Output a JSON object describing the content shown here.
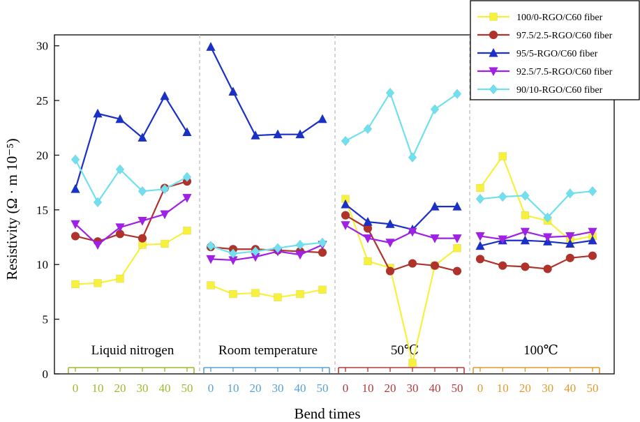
{
  "chart_data": {
    "type": "line",
    "xlabel": "Bend times",
    "ylabel": "Resistivity (Ω · m 10⁻⁵)",
    "ylim": [
      0,
      31
    ],
    "yticks": [
      "0",
      "5",
      "10",
      "15",
      "20",
      "25",
      "30"
    ],
    "x": [
      0,
      10,
      20,
      30,
      40,
      50
    ],
    "xtick_labels": [
      "0",
      "10",
      "20",
      "30",
      "40",
      "50"
    ],
    "grid": false,
    "legend_position": "top-right",
    "panels": [
      {
        "label": "Liquid nitrogen",
        "axis_color": "#9bbb2e"
      },
      {
        "label": "Room temperature",
        "axis_color": "#5aa0d8"
      },
      {
        "label": "50℃",
        "axis_color": "#b33a3a"
      },
      {
        "label": "100℃",
        "axis_color": "#e39a2a"
      }
    ],
    "series": [
      {
        "name": "100/0-RGO/C60  fiber",
        "color": "#f7f13c",
        "marker": "square",
        "values": [
          [
            8.2,
            8.3,
            8.7,
            11.8,
            11.9,
            13.1
          ],
          [
            8.1,
            7.3,
            7.4,
            7.0,
            7.3,
            7.7
          ],
          [
            16.0,
            10.3,
            9.7,
            1.0,
            9.9,
            11.5
          ],
          [
            17.0,
            19.9,
            14.5,
            14.0,
            12.2,
            12.6
          ]
        ]
      },
      {
        "name": "97.5/2.5-RGO/C60  fiber",
        "color": "#b0322a",
        "marker": "circle",
        "values": [
          [
            12.6,
            12.1,
            12.8,
            12.4,
            17.0,
            17.6
          ],
          [
            11.6,
            11.4,
            11.4,
            11.3,
            11.2,
            11.1
          ],
          [
            14.5,
            13.3,
            9.4,
            10.1,
            9.9,
            9.4
          ],
          [
            10.5,
            9.9,
            9.8,
            9.6,
            10.6,
            10.8
          ]
        ]
      },
      {
        "name": "95/5-RGO/C60  fiber",
        "color": "#1a30c6",
        "marker": "triangle-up",
        "values": [
          [
            16.9,
            23.8,
            23.3,
            21.6,
            25.4,
            22.1
          ],
          [
            29.9,
            25.8,
            21.8,
            21.9,
            21.9,
            23.3
          ],
          [
            15.5,
            13.9,
            13.7,
            13.2,
            15.3,
            15.3
          ],
          [
            11.7,
            12.2,
            12.2,
            12.1,
            11.9,
            12.2
          ]
        ]
      },
      {
        "name": "92.5/7.5-RGO/C60  fiber",
        "color": "#a020e8",
        "marker": "triangle-down",
        "values": [
          [
            13.7,
            11.8,
            13.4,
            14.0,
            14.6,
            16.1
          ],
          [
            10.5,
            10.4,
            10.7,
            11.2,
            10.9,
            11.8
          ],
          [
            13.6,
            12.4,
            12.0,
            13.0,
            12.4,
            12.4
          ],
          [
            12.6,
            12.3,
            13.0,
            12.5,
            12.6,
            13.0
          ]
        ]
      },
      {
        "name": "90/10-RGO/C60  fiber",
        "color": "#70e0ee",
        "marker": "diamond",
        "values": [
          [
            19.6,
            15.7,
            18.7,
            16.7,
            16.9,
            18.0
          ],
          [
            11.7,
            11.0,
            11.2,
            11.5,
            11.8,
            12.0
          ],
          [
            21.3,
            22.4,
            25.7,
            19.8,
            24.2,
            25.6
          ],
          [
            16.0,
            16.2,
            16.3,
            14.3,
            16.5,
            16.7
          ]
        ]
      }
    ]
  }
}
